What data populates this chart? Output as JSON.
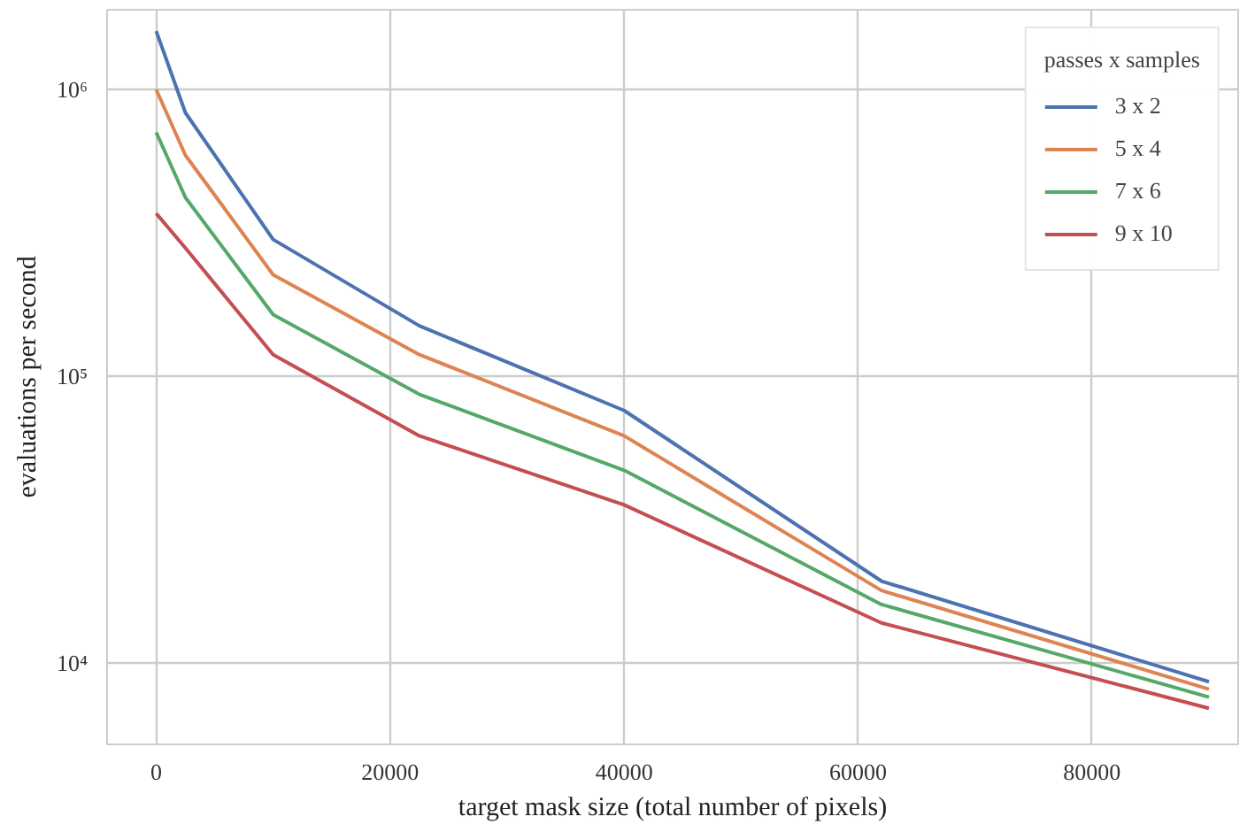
{
  "chart_data": {
    "type": "line",
    "xlabel": "target mask size (total number of pixels)",
    "ylabel": "evaluations per second",
    "legend_title": "passes x samples",
    "legend": "top right",
    "grid": true,
    "log": "y",
    "x": [
      0,
      2500,
      10000,
      22500,
      40000,
      62000,
      90000
    ],
    "xlim": [
      -4200,
      92500
    ],
    "xticks": [
      0,
      20000,
      40000,
      60000,
      80000
    ],
    "ylim": [
      5200,
      1900000
    ],
    "yticks": [
      {
        "value": 10000,
        "label": "10⁴"
      },
      {
        "value": 100000,
        "label": "10⁵"
      },
      {
        "value": 1000000,
        "label": "10⁶"
      }
    ],
    "series": [
      {
        "name": "3 x 2",
        "color": "#4c72b0",
        "values": [
          1600000,
          830000,
          300000,
          150000,
          76000,
          19300,
          8600
        ]
      },
      {
        "name": "5 x 4",
        "color": "#dd8452",
        "values": [
          1000000,
          590000,
          226000,
          119000,
          62000,
          17900,
          8100
        ]
      },
      {
        "name": "7 x 6",
        "color": "#55a868",
        "values": [
          710000,
          420000,
          164000,
          86500,
          47000,
          16000,
          7600
        ]
      },
      {
        "name": "9 x 10",
        "color": "#c44e52",
        "values": [
          370000,
          280000,
          119000,
          62000,
          35600,
          13800,
          6950
        ]
      }
    ]
  }
}
